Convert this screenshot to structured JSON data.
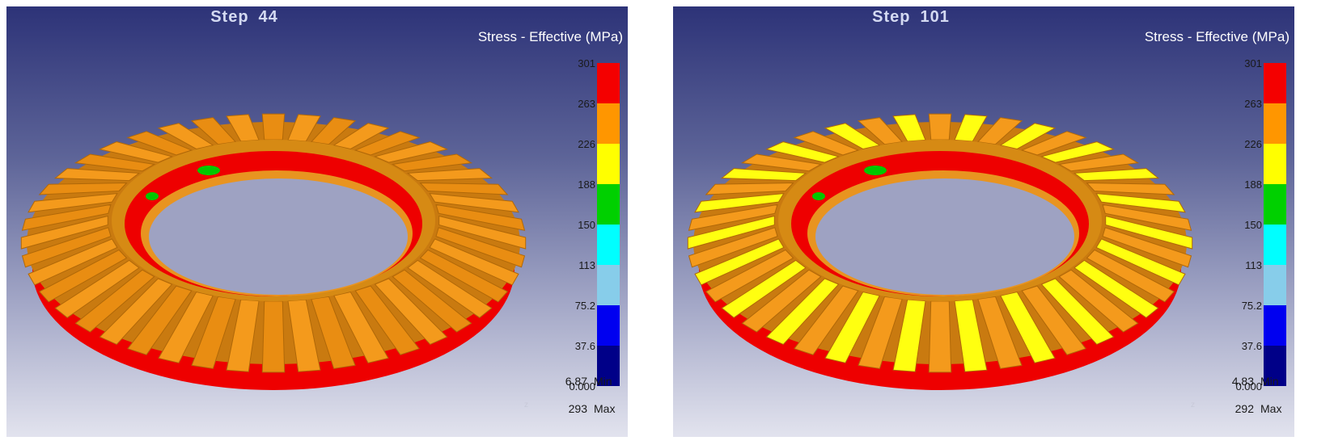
{
  "panels": [
    {
      "step_label": "Step",
      "step_number": "44",
      "legend_title": "Stress - Effective (MPa)",
      "legend_ticks": [
        "301",
        "263",
        "226",
        "188",
        "150",
        "113",
        "75.2",
        "37.6",
        "0.000"
      ],
      "min_value": "6.87",
      "min_label": "Min",
      "max_value": "293",
      "max_label": "Max",
      "axis_mark": "z"
    },
    {
      "step_label": "Step",
      "step_number": "101",
      "legend_title": "Stress - Effective (MPa)",
      "legend_ticks": [
        "301",
        "263",
        "226",
        "188",
        "150",
        "113",
        "75.2",
        "37.6",
        "0.000"
      ],
      "min_value": "4.83",
      "min_label": "Min",
      "max_value": "292",
      "max_label": "Max",
      "axis_mark": "z"
    }
  ],
  "legend_colors": [
    "#f40000",
    "#ff9600",
    "#ffff00",
    "#00d000",
    "#00ffff",
    "#87cdea",
    "#0000f0",
    "#000088"
  ],
  "gear_colors": {
    "rim": "#ee0000",
    "tooth_left": "#f09018",
    "tooth_right": "#ffff10",
    "inner": "#ee0000",
    "hotspot": "#00c800"
  }
}
